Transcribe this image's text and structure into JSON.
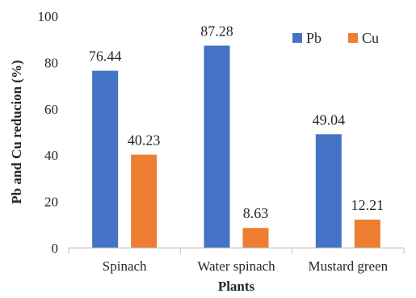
{
  "chart_data": {
    "type": "bar",
    "categories": [
      "Spinach",
      "Water spinach",
      "Mustard green"
    ],
    "series": [
      {
        "name": "Pb",
        "values": [
          76.44,
          87.28,
          49.04
        ],
        "color": "#4472C4"
      },
      {
        "name": "Cu",
        "values": [
          40.23,
          8.63,
          12.21
        ],
        "color": "#ED7D31"
      }
    ],
    "data_labels": {
      "Pb": [
        "76.44",
        "87.28",
        "49.04"
      ],
      "Cu": [
        "40.23",
        "8.63",
        "12.21"
      ]
    },
    "title": "",
    "xlabel": "Plants",
    "ylabel": "Pb and Cu reducion (%)",
    "ylim": [
      0,
      100
    ],
    "yticks": [
      "0",
      "20",
      "40",
      "60",
      "80",
      "100"
    ],
    "grid": false,
    "legend_position": "top-right"
  }
}
